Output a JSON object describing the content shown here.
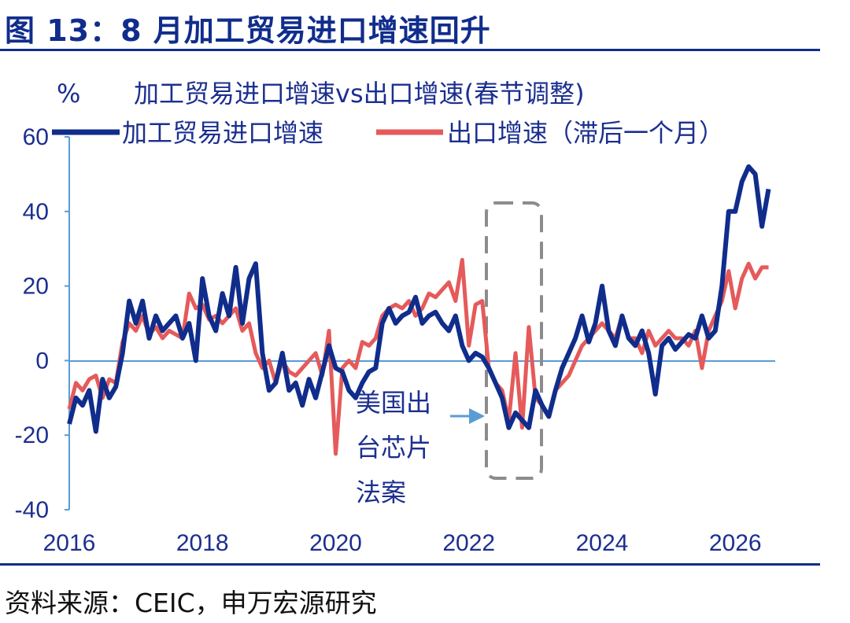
{
  "figure": {
    "title": "图 13：8 月加工贸易进口增速回升",
    "source": "资料来源：CEIC，申万宏源研究"
  },
  "chart_data": {
    "type": "line",
    "title": "加工贸易进口增速vs出口增速(春节调整)",
    "ylabel": "%",
    "xlabel": "",
    "ylim": [
      -40,
      60
    ],
    "yticks": [
      "60",
      "40",
      "20",
      "0",
      "-20",
      "-40"
    ],
    "xticks": [
      "2016",
      "2018",
      "2020",
      "2022",
      "2024",
      "2026"
    ],
    "xlim": [
      2016,
      2026.6
    ],
    "legend": "top",
    "grid": false,
    "annotation": {
      "lines": [
        "美国出",
        "台芯片",
        "法案"
      ]
    },
    "series": [
      {
        "name": "加工贸易进口增速",
        "color": "#102d8c",
        "x": [
          2016.0,
          2016.1,
          2016.2,
          2016.3,
          2016.4,
          2016.5,
          2016.6,
          2016.7,
          2016.8,
          2016.9,
          2017.0,
          2017.1,
          2017.2,
          2017.3,
          2017.4,
          2017.5,
          2017.6,
          2017.7,
          2017.8,
          2017.9,
          2018.0,
          2018.1,
          2018.2,
          2018.3,
          2018.4,
          2018.5,
          2018.6,
          2018.7,
          2018.8,
          2018.9,
          2019.0,
          2019.1,
          2019.2,
          2019.3,
          2019.4,
          2019.5,
          2019.6,
          2019.7,
          2019.8,
          2019.9,
          2020.0,
          2020.1,
          2020.2,
          2020.3,
          2020.4,
          2020.5,
          2020.6,
          2020.7,
          2020.8,
          2020.9,
          2021.0,
          2021.1,
          2021.2,
          2021.3,
          2021.4,
          2021.5,
          2021.6,
          2021.7,
          2021.8,
          2021.9,
          2022.0,
          2022.1,
          2022.2,
          2022.3,
          2022.4,
          2022.5,
          2022.6,
          2022.7,
          2022.8,
          2022.9,
          2023.0,
          2023.1,
          2023.2,
          2023.3,
          2023.4,
          2023.5,
          2023.6,
          2023.7,
          2023.8,
          2023.9,
          2024.0,
          2024.1,
          2024.2,
          2024.3,
          2024.4,
          2024.5,
          2024.6,
          2024.7,
          2024.8,
          2024.9,
          2025.0,
          2025.1,
          2025.2,
          2025.3,
          2025.4,
          2025.5,
          2025.6,
          2025.7,
          2025.8,
          2025.9,
          2026.0,
          2026.1,
          2026.2,
          2026.3,
          2026.4,
          2026.5
        ],
        "values": [
          -17,
          -10,
          -12,
          -8,
          -19,
          -5,
          -10,
          -7,
          2,
          16,
          10,
          16,
          6,
          12,
          8,
          10,
          12,
          6,
          10,
          0,
          22,
          12,
          8,
          18,
          12,
          25,
          10,
          22,
          26,
          2,
          -8,
          -6,
          2,
          -8,
          -6,
          -12,
          -5,
          -10,
          -3,
          4,
          -2,
          -3,
          -8,
          -10,
          -6,
          -3,
          -2,
          10,
          14,
          10,
          12,
          13,
          17,
          10,
          12,
          13,
          10,
          8,
          12,
          4,
          0,
          2,
          1,
          -2,
          -6,
          -10,
          -18,
          -14,
          -16,
          -18,
          -8,
          -12,
          -15,
          -8,
          -2,
          2,
          6,
          12,
          5,
          10,
          20,
          8,
          4,
          12,
          6,
          4,
          8,
          2,
          -9,
          4,
          6,
          3,
          5,
          7,
          6,
          12,
          6,
          8,
          20,
          40,
          40,
          48,
          52,
          50,
          36,
          46
        ]
      },
      {
        "name": "出口增速（滞后一个月）",
        "color": "#e55a5a",
        "x": [
          2016.0,
          2016.1,
          2016.2,
          2016.3,
          2016.4,
          2016.5,
          2016.6,
          2016.7,
          2016.8,
          2016.9,
          2017.0,
          2017.1,
          2017.2,
          2017.3,
          2017.4,
          2017.5,
          2017.6,
          2017.7,
          2017.8,
          2017.9,
          2018.0,
          2018.1,
          2018.2,
          2018.3,
          2018.4,
          2018.5,
          2018.6,
          2018.7,
          2018.8,
          2018.9,
          2019.0,
          2019.1,
          2019.2,
          2019.3,
          2019.4,
          2019.5,
          2019.6,
          2019.7,
          2019.8,
          2019.9,
          2020.0,
          2020.1,
          2020.2,
          2020.3,
          2020.4,
          2020.5,
          2020.6,
          2020.7,
          2020.8,
          2020.9,
          2021.0,
          2021.1,
          2021.2,
          2021.3,
          2021.4,
          2021.5,
          2021.6,
          2021.7,
          2021.8,
          2021.9,
          2022.0,
          2022.1,
          2022.2,
          2022.3,
          2022.4,
          2022.5,
          2022.6,
          2022.7,
          2022.8,
          2022.9,
          2023.0,
          2023.1,
          2023.2,
          2023.3,
          2023.4,
          2023.5,
          2023.6,
          2023.7,
          2023.8,
          2023.9,
          2024.0,
          2024.1,
          2024.2,
          2024.3,
          2024.4,
          2024.5,
          2024.6,
          2024.7,
          2024.8,
          2024.9,
          2025.0,
          2025.1,
          2025.2,
          2025.3,
          2025.4,
          2025.5,
          2025.6,
          2025.7,
          2025.8,
          2025.9,
          2026.0,
          2026.1,
          2026.2,
          2026.3,
          2026.4,
          2026.5
        ],
        "values": [
          -13,
          -6,
          -8,
          -5,
          -4,
          -10,
          -5,
          -6,
          5,
          10,
          8,
          12,
          7,
          9,
          6,
          8,
          7,
          6,
          18,
          14,
          15,
          11,
          12,
          10,
          12,
          14,
          8,
          10,
          2,
          -2,
          0,
          -6,
          0,
          -3,
          -4,
          -2,
          0,
          2,
          -4,
          8,
          -25,
          -2,
          0,
          -2,
          5,
          4,
          6,
          12,
          14,
          15,
          14,
          16,
          12,
          14,
          18,
          17,
          19,
          21,
          16,
          27,
          4,
          15,
          16,
          -2,
          -6,
          -8,
          -16,
          2,
          -18,
          9,
          -10,
          -12,
          -15,
          -8,
          -6,
          -4,
          0,
          4,
          6,
          8,
          10,
          8,
          6,
          12,
          6,
          6,
          2,
          8,
          4,
          6,
          8,
          6,
          6,
          4,
          8,
          -2,
          8,
          12,
          16,
          24,
          14,
          22,
          26,
          22,
          25,
          25
        ]
      }
    ]
  }
}
